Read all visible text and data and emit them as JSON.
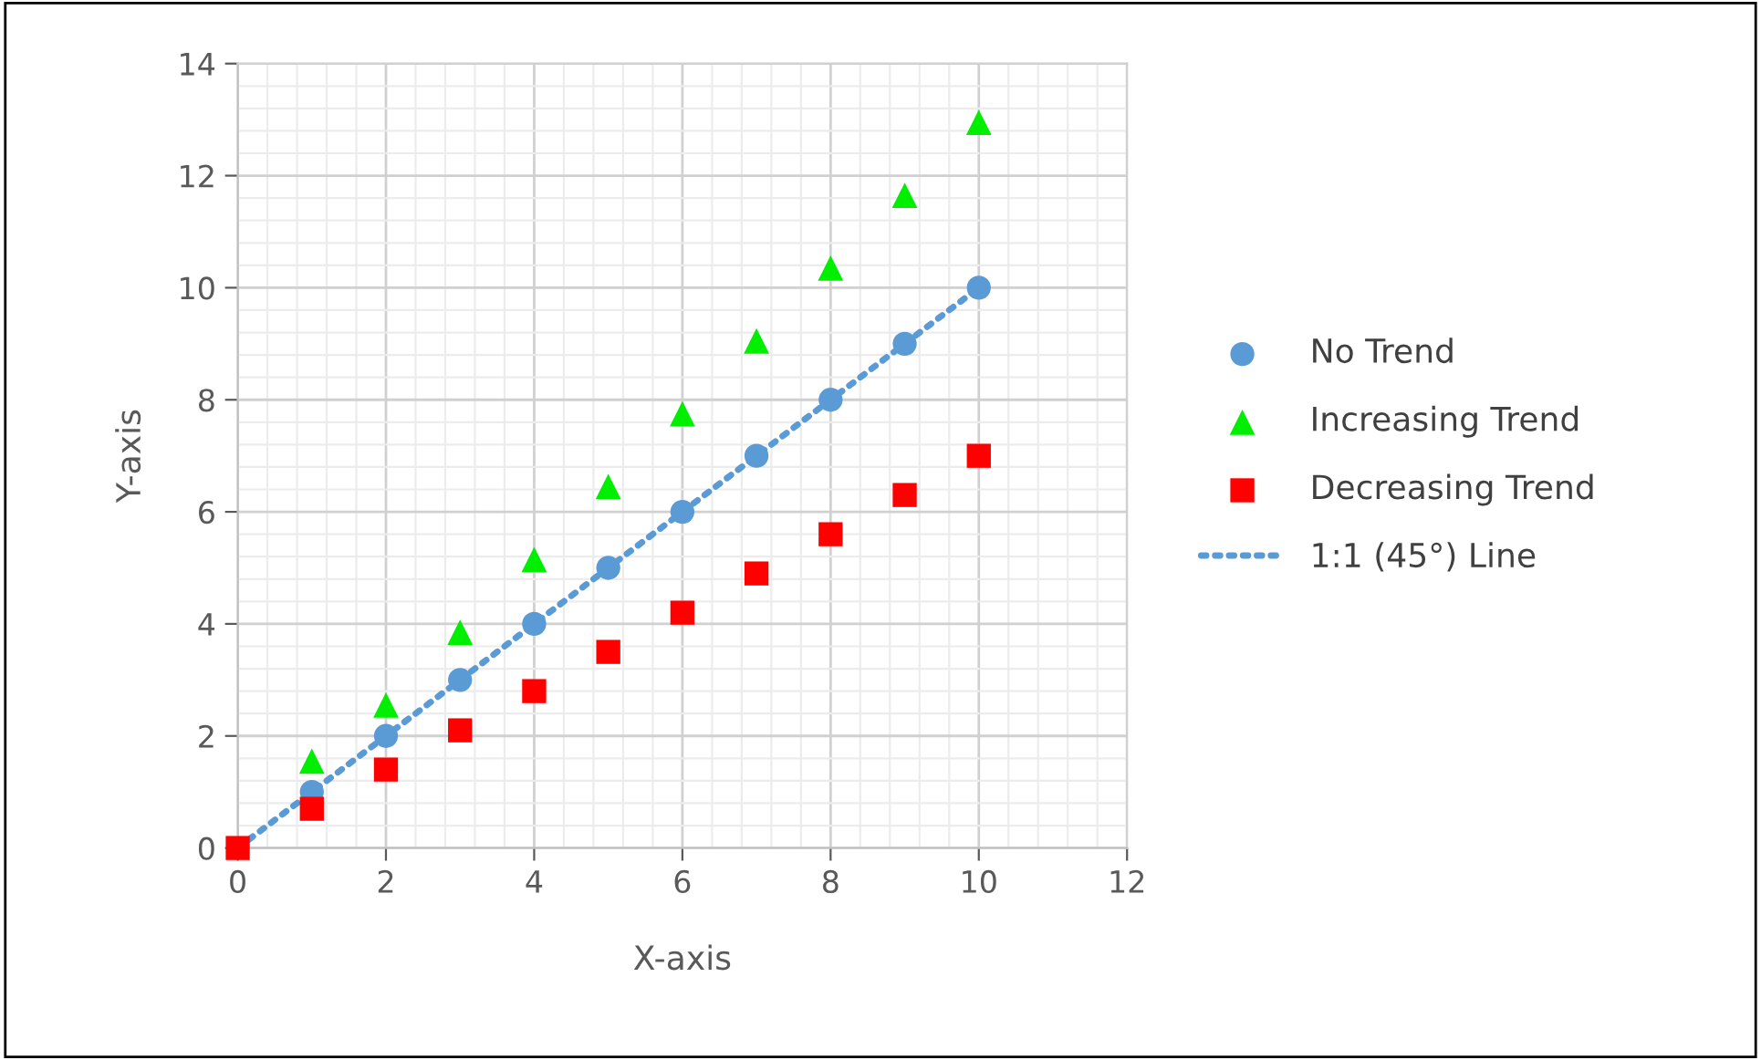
{
  "chart_data": {
    "type": "scatter",
    "xlabel": "X-axis",
    "ylabel": "Y-axis",
    "x": [
      0,
      1,
      2,
      3,
      4,
      5,
      6,
      7,
      8,
      9,
      10
    ],
    "series": [
      {
        "name": "No Trend",
        "color": "#5b9bd5",
        "marker": "circle",
        "values": [
          null,
          1,
          2,
          3,
          4,
          5,
          6,
          7,
          8,
          9,
          10
        ]
      },
      {
        "name": "Increasing Trend",
        "color": "#00ee00",
        "marker": "triangle",
        "values": [
          null,
          1.55,
          2.55,
          3.85,
          5.15,
          6.45,
          7.75,
          9.05,
          10.35,
          11.65,
          12.95
        ]
      },
      {
        "name": "Decreasing Trend",
        "color": "#ff0000",
        "marker": "square",
        "values": [
          0,
          0.7,
          1.4,
          2.1,
          2.8,
          3.5,
          4.2,
          4.9,
          5.6,
          6.3,
          7.0
        ]
      },
      {
        "name": "1:1 (45°) Line",
        "type": "line",
        "color": "#5b9bd5",
        "marker": "none",
        "line_style": "dotted",
        "x": [
          0,
          10
        ],
        "values": [
          0,
          10
        ]
      }
    ],
    "xlim": [
      0,
      12
    ],
    "xticks": [
      0,
      2,
      4,
      6,
      8,
      10,
      12
    ],
    "ylim": [
      0,
      14
    ],
    "yticks": [
      0,
      2,
      4,
      6,
      8,
      10,
      12,
      14
    ],
    "grid": true,
    "legend": "right"
  }
}
